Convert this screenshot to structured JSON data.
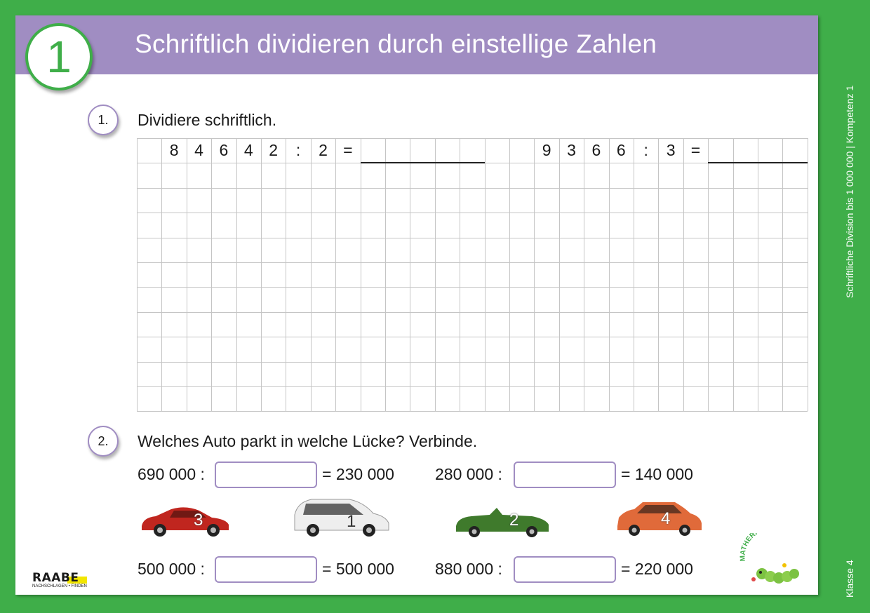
{
  "header": {
    "badge_number": "1",
    "title": "Schriftlich dividieren durch einstellige Zahlen"
  },
  "sidebar": {
    "top_label": "Schriftliche Division bis 1 000 000   |   Kompetenz 1",
    "bottom_label": "Klasse 4"
  },
  "task1": {
    "number": "1.",
    "instruction": "Dividiere schriftlich.",
    "problem_a": [
      "8",
      "4",
      "6",
      "4",
      "2",
      ":",
      "2",
      "="
    ],
    "problem_b": [
      "9",
      "3",
      "6",
      "6",
      ":",
      "3",
      "="
    ]
  },
  "task2": {
    "number": "2.",
    "instruction": "Welches Auto parkt in welche Lücke? Verbinde.",
    "equations": [
      {
        "left": "690 000 :",
        "right": "= 230 000"
      },
      {
        "left": "280 000 :",
        "right": "= 140 000"
      },
      {
        "left": "500 000 :",
        "right": "= 500 000"
      },
      {
        "left": "880 000 :",
        "right": "= 220 000"
      }
    ],
    "cars": [
      {
        "label": "3",
        "color": "#c0261f"
      },
      {
        "label": "1",
        "color": "#e8e8e8"
      },
      {
        "label": "2",
        "color": "#3f7a2c"
      },
      {
        "label": "4",
        "color": "#e06a3a"
      }
    ]
  },
  "footer": {
    "publisher": "RAABE",
    "publisher_sub": "NACHSCHLAGEN • FINDEN",
    "mascot": "MATHERAUPE"
  },
  "colors": {
    "background": "#3fae49",
    "header": "#a08dc2",
    "badge_ring": "#3fae49"
  }
}
